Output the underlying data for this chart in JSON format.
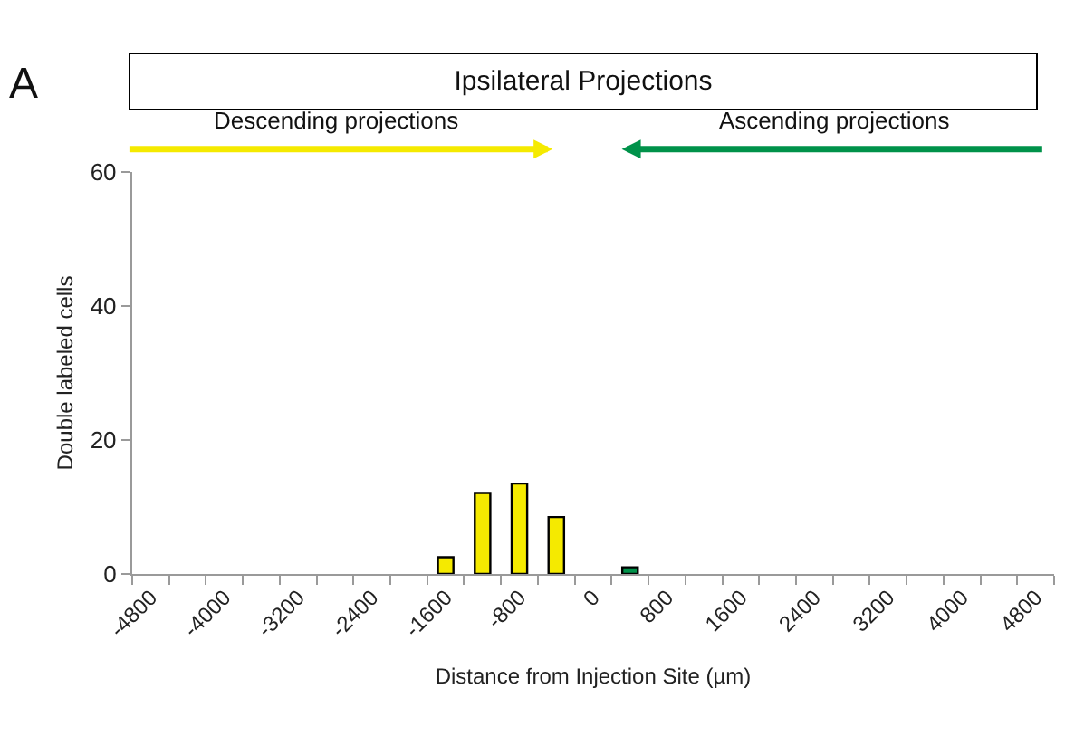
{
  "chart_data": {
    "type": "bar",
    "title": "Ipsilateral Projections",
    "xlabel": "Distance from Injection Site (µm)",
    "ylabel": "Double labeled cells",
    "categories": [
      "-4800",
      null,
      "-4000",
      null,
      "-3200",
      null,
      "-2400",
      null,
      "-1600",
      null,
      "-800",
      null,
      "0",
      null,
      "800",
      null,
      "1600",
      null,
      "2400",
      null,
      "3200",
      null,
      "4000",
      null,
      "4800"
    ],
    "values": [
      null,
      null,
      null,
      null,
      null,
      null,
      null,
      null,
      2.5,
      12.1,
      13.5,
      8.5,
      null,
      1.0,
      null,
      null,
      null,
      null,
      null,
      null,
      null,
      null,
      null,
      null,
      null
    ],
    "colors": [
      "#f5ea00",
      "#f5ea00",
      "#f5ea00",
      "#f5ea00",
      "#f5ea00",
      "#f5ea00",
      "#f5ea00",
      "#f5ea00",
      "#f5ea00",
      "#f5ea00",
      "#f5ea00",
      "#f5ea00",
      "#f5ea00",
      "#00924a",
      "#00924a",
      "#00924a",
      "#00924a",
      "#00924a",
      "#00924a",
      "#00924a",
      "#00924a",
      "#00924a",
      "#00924a",
      "#00924a",
      "#00924a"
    ],
    "ylim": [
      0,
      60
    ],
    "yticks": [
      0,
      20,
      40,
      60
    ],
    "legend": false,
    "annotations": [
      "A",
      "Descending projections",
      "Ascending projections"
    ]
  }
}
